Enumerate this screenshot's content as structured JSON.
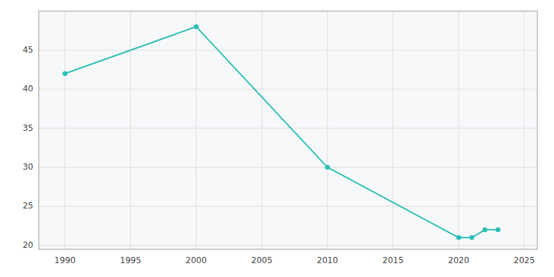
{
  "chart_data": {
    "type": "line",
    "x": [
      1990,
      2000,
      2010,
      2020,
      2021,
      2022,
      2023
    ],
    "values": [
      42,
      48,
      30,
      21,
      21,
      22,
      22
    ],
    "color": "#2abfb3",
    "marker": "circle",
    "xlim": [
      1988,
      2026
    ],
    "ylim": [
      19.5,
      50
    ],
    "xticks": [
      1990,
      1995,
      2000,
      2005,
      2010,
      2015,
      2020,
      2025
    ],
    "yticks": [
      20,
      25,
      30,
      35,
      40,
      45
    ],
    "grid": true
  }
}
